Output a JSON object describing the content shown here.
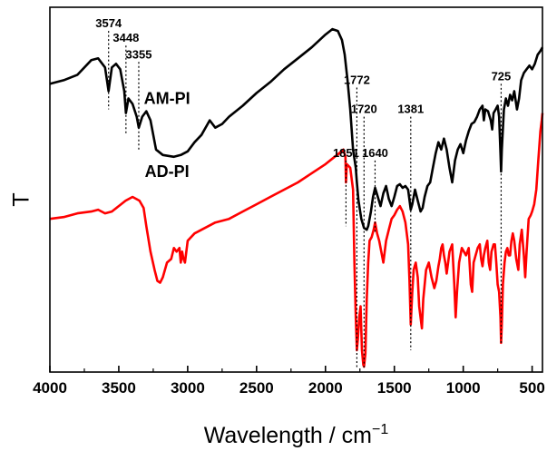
{
  "chart_data": {
    "type": "line",
    "title": "",
    "xlabel": "Wavelength / cm",
    "xlabel_superscript": "−1",
    "ylabel": "T",
    "xlim": [
      4000,
      425
    ],
    "x_reversed": true,
    "x_ticks": [
      4000,
      3500,
      3000,
      2500,
      2000,
      1500,
      1000,
      500
    ],
    "y_ticks_shown": false,
    "grid": false,
    "series": [
      {
        "name": "AM-PI",
        "color": "#000000",
        "points": [
          [
            4000,
            0.79
          ],
          [
            3900,
            0.8
          ],
          [
            3800,
            0.815
          ],
          [
            3700,
            0.855
          ],
          [
            3650,
            0.86
          ],
          [
            3600,
            0.835
          ],
          [
            3574,
            0.77
          ],
          [
            3550,
            0.835
          ],
          [
            3520,
            0.845
          ],
          [
            3490,
            0.83
          ],
          [
            3460,
            0.77
          ],
          [
            3448,
            0.71
          ],
          [
            3430,
            0.75
          ],
          [
            3400,
            0.735
          ],
          [
            3370,
            0.7
          ],
          [
            3355,
            0.67
          ],
          [
            3330,
            0.7
          ],
          [
            3300,
            0.715
          ],
          [
            3270,
            0.69
          ],
          [
            3230,
            0.61
          ],
          [
            3180,
            0.595
          ],
          [
            3100,
            0.59
          ],
          [
            3050,
            0.595
          ],
          [
            3000,
            0.605
          ],
          [
            2950,
            0.63
          ],
          [
            2900,
            0.65
          ],
          [
            2840,
            0.69
          ],
          [
            2800,
            0.67
          ],
          [
            2750,
            0.68
          ],
          [
            2700,
            0.7
          ],
          [
            2600,
            0.73
          ],
          [
            2500,
            0.765
          ],
          [
            2400,
            0.795
          ],
          [
            2300,
            0.83
          ],
          [
            2200,
            0.86
          ],
          [
            2100,
            0.89
          ],
          [
            2000,
            0.925
          ],
          [
            1950,
            0.94
          ],
          [
            1910,
            0.935
          ],
          [
            1880,
            0.91
          ],
          [
            1860,
            0.87
          ],
          [
            1840,
            0.8
          ],
          [
            1820,
            0.72
          ],
          [
            1800,
            0.61
          ],
          [
            1780,
            0.56
          ],
          [
            1772,
            0.52
          ],
          [
            1760,
            0.47
          ],
          [
            1740,
            0.42
          ],
          [
            1720,
            0.395
          ],
          [
            1700,
            0.39
          ],
          [
            1690,
            0.4
          ],
          [
            1670,
            0.44
          ],
          [
            1655,
            0.48
          ],
          [
            1640,
            0.505
          ],
          [
            1620,
            0.48
          ],
          [
            1600,
            0.455
          ],
          [
            1580,
            0.49
          ],
          [
            1560,
            0.51
          ],
          [
            1540,
            0.475
          ],
          [
            1520,
            0.455
          ],
          [
            1500,
            0.48
          ],
          [
            1480,
            0.51
          ],
          [
            1460,
            0.515
          ],
          [
            1440,
            0.505
          ],
          [
            1420,
            0.51
          ],
          [
            1400,
            0.5
          ],
          [
            1381,
            0.445
          ],
          [
            1370,
            0.46
          ],
          [
            1350,
            0.5
          ],
          [
            1330,
            0.47
          ],
          [
            1310,
            0.44
          ],
          [
            1295,
            0.45
          ],
          [
            1280,
            0.48
          ],
          [
            1260,
            0.51
          ],
          [
            1240,
            0.52
          ],
          [
            1220,
            0.56
          ],
          [
            1200,
            0.6
          ],
          [
            1180,
            0.63
          ],
          [
            1160,
            0.61
          ],
          [
            1140,
            0.64
          ],
          [
            1120,
            0.61
          ],
          [
            1100,
            0.56
          ],
          [
            1080,
            0.52
          ],
          [
            1060,
            0.58
          ],
          [
            1040,
            0.61
          ],
          [
            1020,
            0.625
          ],
          [
            1000,
            0.6
          ],
          [
            980,
            0.635
          ],
          [
            960,
            0.66
          ],
          [
            940,
            0.68
          ],
          [
            920,
            0.685
          ],
          [
            900,
            0.7
          ],
          [
            880,
            0.72
          ],
          [
            860,
            0.73
          ],
          [
            850,
            0.69
          ],
          [
            840,
            0.72
          ],
          [
            820,
            0.715
          ],
          [
            800,
            0.69
          ],
          [
            790,
            0.665
          ],
          [
            780,
            0.71
          ],
          [
            765,
            0.72
          ],
          [
            750,
            0.73
          ],
          [
            740,
            0.7
          ],
          [
            730,
            0.6
          ],
          [
            725,
            0.55
          ],
          [
            720,
            0.61
          ],
          [
            705,
            0.72
          ],
          [
            690,
            0.75
          ],
          [
            675,
            0.73
          ],
          [
            660,
            0.76
          ],
          [
            645,
            0.745
          ],
          [
            630,
            0.77
          ],
          [
            610,
            0.72
          ],
          [
            595,
            0.75
          ],
          [
            580,
            0.8
          ],
          [
            560,
            0.82
          ],
          [
            540,
            0.83
          ],
          [
            520,
            0.84
          ],
          [
            500,
            0.83
          ],
          [
            480,
            0.845
          ],
          [
            460,
            0.87
          ],
          [
            440,
            0.88
          ],
          [
            425,
            0.89
          ]
        ]
      },
      {
        "name": "AD-PI",
        "color": "#ff0000",
        "points": [
          [
            4000,
            0.42
          ],
          [
            3900,
            0.425
          ],
          [
            3800,
            0.435
          ],
          [
            3700,
            0.44
          ],
          [
            3650,
            0.445
          ],
          [
            3600,
            0.435
          ],
          [
            3550,
            0.44
          ],
          [
            3500,
            0.455
          ],
          [
            3450,
            0.47
          ],
          [
            3400,
            0.48
          ],
          [
            3350,
            0.47
          ],
          [
            3320,
            0.45
          ],
          [
            3300,
            0.4
          ],
          [
            3270,
            0.33
          ],
          [
            3240,
            0.28
          ],
          [
            3220,
            0.25
          ],
          [
            3200,
            0.245
          ],
          [
            3180,
            0.26
          ],
          [
            3150,
            0.3
          ],
          [
            3120,
            0.31
          ],
          [
            3100,
            0.34
          ],
          [
            3080,
            0.33
          ],
          [
            3060,
            0.34
          ],
          [
            3050,
            0.3
          ],
          [
            3040,
            0.33
          ],
          [
            3030,
            0.31
          ],
          [
            3020,
            0.3
          ],
          [
            3000,
            0.36
          ],
          [
            2950,
            0.38
          ],
          [
            2900,
            0.39
          ],
          [
            2800,
            0.41
          ],
          [
            2700,
            0.42
          ],
          [
            2600,
            0.44
          ],
          [
            2500,
            0.46
          ],
          [
            2400,
            0.48
          ],
          [
            2300,
            0.5
          ],
          [
            2200,
            0.52
          ],
          [
            2100,
            0.545
          ],
          [
            2000,
            0.57
          ],
          [
            1950,
            0.585
          ],
          [
            1900,
            0.6
          ],
          [
            1870,
            0.61
          ],
          [
            1855,
            0.59
          ],
          [
            1851,
            0.52
          ],
          [
            1845,
            0.57
          ],
          [
            1820,
            0.56
          ],
          [
            1800,
            0.5
          ],
          [
            1790,
            0.3
          ],
          [
            1780,
            0.15
          ],
          [
            1772,
            0.06
          ],
          [
            1765,
            0.09
          ],
          [
            1755,
            0.15
          ],
          [
            1745,
            0.18
          ],
          [
            1735,
            0.06
          ],
          [
            1725,
            0.02
          ],
          [
            1720,
            0.015
          ],
          [
            1710,
            0.05
          ],
          [
            1700,
            0.2
          ],
          [
            1690,
            0.3
          ],
          [
            1680,
            0.36
          ],
          [
            1665,
            0.37
          ],
          [
            1650,
            0.39
          ],
          [
            1640,
            0.41
          ],
          [
            1625,
            0.38
          ],
          [
            1610,
            0.36
          ],
          [
            1595,
            0.33
          ],
          [
            1580,
            0.3
          ],
          [
            1560,
            0.36
          ],
          [
            1540,
            0.39
          ],
          [
            1520,
            0.42
          ],
          [
            1500,
            0.43
          ],
          [
            1480,
            0.445
          ],
          [
            1460,
            0.455
          ],
          [
            1440,
            0.44
          ],
          [
            1420,
            0.41
          ],
          [
            1400,
            0.35
          ],
          [
            1390,
            0.25
          ],
          [
            1381,
            0.13
          ],
          [
            1370,
            0.22
          ],
          [
            1360,
            0.28
          ],
          [
            1345,
            0.3
          ],
          [
            1330,
            0.26
          ],
          [
            1320,
            0.18
          ],
          [
            1310,
            0.15
          ],
          [
            1300,
            0.12
          ],
          [
            1290,
            0.2
          ],
          [
            1270,
            0.28
          ],
          [
            1250,
            0.3
          ],
          [
            1230,
            0.26
          ],
          [
            1210,
            0.23
          ],
          [
            1195,
            0.25
          ],
          [
            1180,
            0.29
          ],
          [
            1170,
            0.31
          ],
          [
            1160,
            0.34
          ],
          [
            1150,
            0.35
          ],
          [
            1140,
            0.32
          ],
          [
            1130,
            0.3
          ],
          [
            1120,
            0.27
          ],
          [
            1110,
            0.3
          ],
          [
            1100,
            0.33
          ],
          [
            1080,
            0.35
          ],
          [
            1065,
            0.24
          ],
          [
            1055,
            0.15
          ],
          [
            1045,
            0.22
          ],
          [
            1030,
            0.3
          ],
          [
            1010,
            0.34
          ],
          [
            995,
            0.33
          ],
          [
            980,
            0.32
          ],
          [
            960,
            0.34
          ],
          [
            945,
            0.24
          ],
          [
            935,
            0.22
          ],
          [
            925,
            0.3
          ],
          [
            910,
            0.32
          ],
          [
            895,
            0.34
          ],
          [
            880,
            0.35
          ],
          [
            870,
            0.31
          ],
          [
            860,
            0.29
          ],
          [
            850,
            0.32
          ],
          [
            840,
            0.34
          ],
          [
            825,
            0.36
          ],
          [
            815,
            0.3
          ],
          [
            805,
            0.28
          ],
          [
            795,
            0.33
          ],
          [
            780,
            0.35
          ],
          [
            770,
            0.35
          ],
          [
            760,
            0.3
          ],
          [
            750,
            0.24
          ],
          [
            740,
            0.22
          ],
          [
            730,
            0.15
          ],
          [
            725,
            0.08
          ],
          [
            720,
            0.13
          ],
          [
            712,
            0.24
          ],
          [
            700,
            0.3
          ],
          [
            690,
            0.33
          ],
          [
            680,
            0.34
          ],
          [
            670,
            0.32
          ],
          [
            660,
            0.32
          ],
          [
            650,
            0.36
          ],
          [
            640,
            0.38
          ],
          [
            630,
            0.36
          ],
          [
            615,
            0.31
          ],
          [
            600,
            0.28
          ],
          [
            590,
            0.35
          ],
          [
            575,
            0.39
          ],
          [
            560,
            0.32
          ],
          [
            550,
            0.26
          ],
          [
            540,
            0.33
          ],
          [
            525,
            0.42
          ],
          [
            510,
            0.43
          ],
          [
            500,
            0.44
          ],
          [
            485,
            0.46
          ],
          [
            470,
            0.5
          ],
          [
            455,
            0.58
          ],
          [
            440,
            0.66
          ],
          [
            430,
            0.69
          ],
          [
            425,
            0.71
          ]
        ]
      }
    ],
    "series_labels": [
      {
        "text": "AM-PI",
        "x": 3150,
        "y": 0.735
      },
      {
        "text": "AD-PI",
        "x": 3150,
        "y": 0.535
      }
    ],
    "annotations": [
      {
        "label": "3574",
        "x": 3574,
        "y_top": 0.935,
        "y_bottom": 0.72,
        "label_x": 3574,
        "label_y": 0.945
      },
      {
        "label": "3448",
        "x": 3448,
        "y_top": 0.895,
        "y_bottom": 0.655,
        "label_x": 3448,
        "label_y": 0.905
      },
      {
        "label": "3355",
        "x": 3355,
        "y_top": 0.85,
        "y_bottom": 0.61,
        "label_x": 3355,
        "label_y": 0.86
      },
      {
        "label": "1772",
        "x": 1772,
        "y_top": 0.78,
        "y_bottom": 0.01,
        "label_x": 1772,
        "label_y": 0.79
      },
      {
        "label": "1720",
        "x": 1720,
        "y_top": 0.7,
        "y_bottom": 0.01,
        "label_x": 1720,
        "label_y": 0.71
      },
      {
        "label": "1381",
        "x": 1381,
        "y_top": 0.7,
        "y_bottom": 0.06,
        "label_x": 1381,
        "label_y": 0.71
      },
      {
        "label": "1640",
        "x": 1640,
        "y_top": 0.58,
        "y_bottom": 0.38,
        "label_x": 1640,
        "label_y": 0.59
      },
      {
        "label": "1851",
        "x": 1851,
        "y_top": 0.58,
        "y_bottom": 0.4,
        "label_x": 1851,
        "label_y": 0.59
      },
      {
        "label": "725",
        "x": 725,
        "y_top": 0.79,
        "y_bottom": 0.08,
        "label_x": 725,
        "label_y": 0.8
      }
    ]
  }
}
